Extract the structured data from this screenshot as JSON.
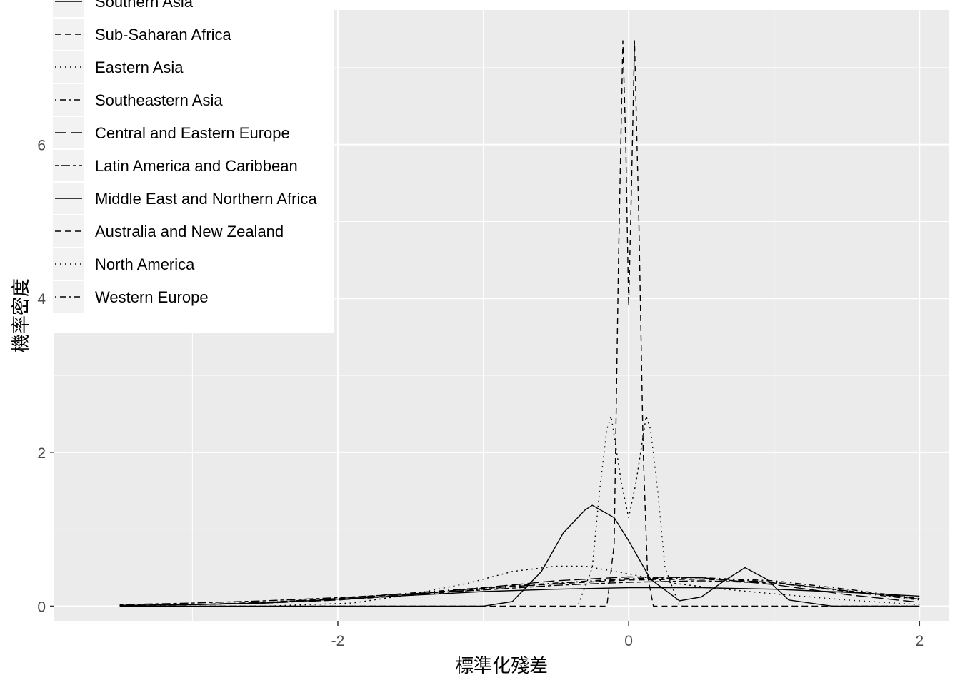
{
  "chart_data": {
    "type": "line",
    "title": "",
    "xlabel": "標準化殘差",
    "ylabel": "機率密度",
    "xlim": [
      -3.95,
      2.2
    ],
    "ylim": [
      -0.2,
      7.75
    ],
    "x_ticks": [
      -2,
      0,
      2
    ],
    "x_tick_labels": [
      "-2",
      "0",
      "2"
    ],
    "y_ticks": [
      0,
      2,
      4,
      6
    ],
    "y_tick_labels": [
      "0",
      "2",
      "4",
      "6"
    ],
    "grid": true,
    "legend_position": "top-left",
    "colors": {
      "panel": "#ebebeb",
      "grid": "#ffffff",
      "line": "#000000",
      "tick_text": "#4d4d4d"
    },
    "series": [
      {
        "name": "Southern Asia",
        "linetype": "solid",
        "x": [
          -3.5,
          -3.0,
          -2.5,
          -2.0,
          -1.5,
          -1.0,
          -0.5,
          0.0,
          0.5,
          1.0,
          1.5,
          2.0
        ],
        "y": [
          0.01,
          0.02,
          0.04,
          0.09,
          0.14,
          0.19,
          0.22,
          0.24,
          0.24,
          0.22,
          0.18,
          0.13
        ]
      },
      {
        "name": "Sub-Saharan Africa",
        "linetype": "dashed",
        "x": [
          -3.5,
          -3.0,
          -2.5,
          -2.0,
          -1.5,
          -1.0,
          -0.5,
          0.0,
          0.5,
          1.0,
          1.5,
          2.0
        ],
        "y": [
          0.01,
          0.02,
          0.05,
          0.1,
          0.16,
          0.23,
          0.29,
          0.34,
          0.35,
          0.31,
          0.2,
          0.1
        ]
      },
      {
        "name": "Eastern Asia",
        "linetype": "dotted",
        "x": [
          -3.5,
          -2.5,
          -1.9,
          -1.5,
          -1.1,
          -0.8,
          -0.5,
          -0.3,
          0.0,
          0.3,
          0.6,
          1.0,
          1.5,
          2.0
        ],
        "y": [
          0.0,
          0.0,
          0.04,
          0.15,
          0.3,
          0.45,
          0.52,
          0.52,
          0.42,
          0.3,
          0.23,
          0.16,
          0.08,
          0.02
        ]
      },
      {
        "name": "Southeastern Asia",
        "linetype": "dotdash",
        "x": [
          -3.5,
          -3.0,
          -2.5,
          -2.0,
          -1.5,
          -1.0,
          -0.5,
          0.0,
          0.5,
          1.0,
          1.5,
          2.0
        ],
        "y": [
          0.01,
          0.02,
          0.05,
          0.1,
          0.17,
          0.24,
          0.3,
          0.35,
          0.37,
          0.33,
          0.22,
          0.1
        ]
      },
      {
        "name": "Central and Eastern Europe",
        "linetype": "longdash",
        "x": [
          -3.5,
          -3.0,
          -2.5,
          -2.0,
          -1.5,
          -1.0,
          -0.5,
          0.0,
          0.5,
          1.0,
          1.5,
          2.0
        ],
        "y": [
          0.01,
          0.02,
          0.04,
          0.08,
          0.15,
          0.24,
          0.33,
          0.38,
          0.37,
          0.28,
          0.15,
          0.05
        ]
      },
      {
        "name": "Latin America and Caribbean",
        "linetype": "twodash",
        "x": [
          -3.5,
          -3.0,
          -2.5,
          -2.0,
          -1.5,
          -1.0,
          -0.5,
          0.0,
          0.5,
          1.0,
          1.5,
          2.0
        ],
        "y": [
          0.02,
          0.04,
          0.07,
          0.11,
          0.16,
          0.21,
          0.27,
          0.31,
          0.33,
          0.3,
          0.2,
          0.09
        ]
      },
      {
        "name": "Middle East and Northern Africa",
        "linetype": "solid",
        "x": [
          -3.5,
          -1.0,
          -0.8,
          -0.6,
          -0.45,
          -0.3,
          -0.25,
          -0.1,
          0.0,
          0.15,
          0.35,
          0.5,
          0.65,
          0.8,
          0.95,
          1.1,
          1.4,
          2.0
        ],
        "y": [
          0.0,
          0.0,
          0.06,
          0.45,
          0.95,
          1.25,
          1.31,
          1.15,
          0.85,
          0.35,
          0.07,
          0.12,
          0.32,
          0.5,
          0.35,
          0.08,
          0.0,
          0.0
        ]
      },
      {
        "name": "Australia and New Zealand",
        "linetype": "dashed",
        "x": [
          -3.5,
          -0.15,
          -0.1,
          -0.07,
          -0.04,
          -0.02,
          0.0,
          0.02,
          0.04,
          0.07,
          0.1,
          0.13,
          0.17,
          2.0
        ],
        "y": [
          0.0,
          0.0,
          0.8,
          4.5,
          7.35,
          6.0,
          3.9,
          5.5,
          7.35,
          5.0,
          2.0,
          0.4,
          0.0,
          0.0
        ]
      },
      {
        "name": "North America",
        "linetype": "dotted",
        "x": [
          -3.5,
          -0.35,
          -0.25,
          -0.2,
          -0.15,
          -0.12,
          -0.05,
          0.0,
          0.05,
          0.12,
          0.15,
          0.2,
          0.25,
          0.35,
          2.0
        ],
        "y": [
          0.0,
          0.0,
          0.5,
          1.5,
          2.3,
          2.47,
          1.6,
          1.15,
          1.6,
          2.47,
          2.3,
          1.5,
          0.5,
          0.0,
          0.0
        ]
      },
      {
        "name": "Western Europe",
        "linetype": "dotdash",
        "x": [
          -3.5,
          -3.0,
          -2.5,
          -2.0,
          -1.5,
          -1.0,
          -0.5,
          0.0,
          0.5,
          1.0,
          1.5,
          2.0
        ],
        "y": [
          0.01,
          0.02,
          0.04,
          0.08,
          0.14,
          0.22,
          0.3,
          0.36,
          0.37,
          0.31,
          0.19,
          0.08
        ]
      }
    ]
  }
}
